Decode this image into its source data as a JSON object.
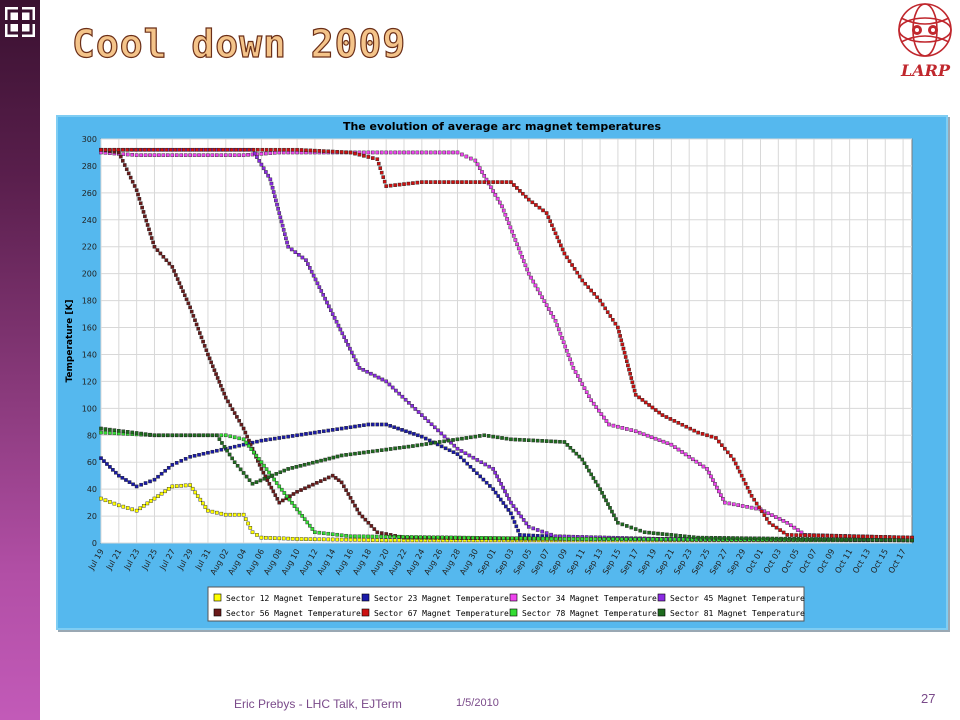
{
  "slide": {
    "title": "Cool down 2009",
    "logo_text": "LARP",
    "footer_author": "Eric Prebys - LHC Talk, EJTerm",
    "footer_date": "1/5/2010",
    "page_number": "27"
  },
  "colors": {
    "sidebar": "#5a1f4d",
    "chart_frame": "#55b8ee",
    "title_fill": "#f4c48a",
    "title_stroke": "#6b2f18",
    "larp_red": "#c0272d"
  },
  "chart_data": {
    "type": "scatter",
    "title": "The evolution of average arc magnet temperatures",
    "ylabel": "Temperature [K]",
    "xlabel": "",
    "ylim": [
      0,
      300
    ],
    "yticks": [
      0,
      20,
      40,
      60,
      80,
      100,
      120,
      140,
      160,
      180,
      200,
      220,
      240,
      260,
      280,
      300
    ],
    "x_axis": "dates 2009, Jul 19 to Oct 18",
    "x_tick_labels": [
      "Jul 19",
      "Jul 21",
      "Jul 23",
      "Jul 25",
      "Jul 27",
      "Jul 29",
      "Jul 31",
      "Aug 02",
      "Aug 04",
      "Aug 06",
      "Aug 08",
      "Aug 10",
      "Aug 12",
      "Aug 14",
      "Aug 16",
      "Aug 18",
      "Aug 20",
      "Aug 22",
      "Aug 24",
      "Aug 26",
      "Aug 28",
      "Aug 30",
      "Sep 01",
      "Sep 03",
      "Sep 05",
      "Sep 07",
      "Sep 09",
      "Sep 11",
      "Sep 13",
      "Sep 15",
      "Sep 17",
      "Sep 19",
      "Sep 21",
      "Sep 23",
      "Sep 25",
      "Sep 27",
      "Sep 29",
      "Oct 01",
      "Oct 03",
      "Oct 05",
      "Oct 07",
      "Oct 09",
      "Oct 11",
      "Oct 13",
      "Oct 15",
      "Oct 17"
    ],
    "grid": true,
    "legend_position": "bottom",
    "series": [
      {
        "name": "Sector 12 Magnet Temperature",
        "color": "#ffff00",
        "points": [
          [
            "2009-07-19",
            33
          ],
          [
            "2009-07-21",
            28
          ],
          [
            "2009-07-23",
            24
          ],
          [
            "2009-07-25",
            33
          ],
          [
            "2009-07-27",
            42
          ],
          [
            "2009-07-29",
            43
          ],
          [
            "2009-07-31",
            24
          ],
          [
            "2009-08-02",
            21
          ],
          [
            "2009-08-04",
            21
          ],
          [
            "2009-08-05",
            8
          ],
          [
            "2009-08-06",
            4
          ],
          [
            "2009-08-10",
            3
          ],
          [
            "2009-08-20",
            2
          ],
          [
            "2009-09-10",
            2
          ],
          [
            "2009-10-18",
            2
          ]
        ]
      },
      {
        "name": "Sector 23 Magnet Temperature",
        "color": "#1a1aa8",
        "points": [
          [
            "2009-07-19",
            63
          ],
          [
            "2009-07-21",
            50
          ],
          [
            "2009-07-23",
            42
          ],
          [
            "2009-07-25",
            47
          ],
          [
            "2009-07-27",
            58
          ],
          [
            "2009-07-29",
            64
          ],
          [
            "2009-08-02",
            70
          ],
          [
            "2009-08-06",
            76
          ],
          [
            "2009-08-10",
            80
          ],
          [
            "2009-08-14",
            84
          ],
          [
            "2009-08-18",
            88
          ],
          [
            "2009-08-20",
            88
          ],
          [
            "2009-08-24",
            79
          ],
          [
            "2009-08-28",
            66
          ],
          [
            "2009-09-01",
            40
          ],
          [
            "2009-09-03",
            22
          ],
          [
            "2009-09-04",
            6
          ],
          [
            "2009-09-10",
            4
          ],
          [
            "2009-09-20",
            3
          ],
          [
            "2009-10-18",
            2
          ]
        ]
      },
      {
        "name": "Sector 34 Magnet Temperature",
        "color": "#ee44ee",
        "points": [
          [
            "2009-07-19",
            290
          ],
          [
            "2009-07-23",
            288
          ],
          [
            "2009-08-04",
            288
          ],
          [
            "2009-08-08",
            290
          ],
          [
            "2009-08-16",
            290
          ],
          [
            "2009-08-20",
            290
          ],
          [
            "2009-08-28",
            290
          ],
          [
            "2009-08-30",
            284
          ],
          [
            "2009-09-02",
            250
          ],
          [
            "2009-09-05",
            200
          ],
          [
            "2009-09-08",
            165
          ],
          [
            "2009-09-10",
            130
          ],
          [
            "2009-09-12",
            106
          ],
          [
            "2009-09-14",
            88
          ],
          [
            "2009-09-17",
            83
          ],
          [
            "2009-09-21",
            73
          ],
          [
            "2009-09-25",
            55
          ],
          [
            "2009-09-27",
            30
          ],
          [
            "2009-10-01",
            25
          ],
          [
            "2009-10-04",
            15
          ],
          [
            "2009-10-06",
            6
          ],
          [
            "2009-10-18",
            4
          ]
        ]
      },
      {
        "name": "Sector 45 Magnet Temperature",
        "color": "#8a2be2",
        "points": [
          [
            "2009-07-19",
            292
          ],
          [
            "2009-08-05",
            292
          ],
          [
            "2009-08-07",
            270
          ],
          [
            "2009-08-09",
            220
          ],
          [
            "2009-08-11",
            210
          ],
          [
            "2009-08-14",
            170
          ],
          [
            "2009-08-17",
            130
          ],
          [
            "2009-08-20",
            120
          ],
          [
            "2009-08-24",
            95
          ],
          [
            "2009-08-28",
            70
          ],
          [
            "2009-09-01",
            55
          ],
          [
            "2009-09-03",
            30
          ],
          [
            "2009-09-05",
            12
          ],
          [
            "2009-09-08",
            5
          ],
          [
            "2009-09-20",
            3
          ],
          [
            "2009-10-18",
            2
          ]
        ]
      },
      {
        "name": "Sector 56 Magnet Temperature",
        "color": "#6b1a1a",
        "points": [
          [
            "2009-07-19",
            292
          ],
          [
            "2009-07-21",
            290
          ],
          [
            "2009-07-23",
            262
          ],
          [
            "2009-07-25",
            220
          ],
          [
            "2009-07-27",
            205
          ],
          [
            "2009-07-29",
            175
          ],
          [
            "2009-07-31",
            140
          ],
          [
            "2009-08-02",
            108
          ],
          [
            "2009-08-04",
            85
          ],
          [
            "2009-08-06",
            55
          ],
          [
            "2009-08-08",
            30
          ],
          [
            "2009-08-10",
            38
          ],
          [
            "2009-08-14",
            50
          ],
          [
            "2009-08-15",
            45
          ],
          [
            "2009-08-17",
            22
          ],
          [
            "2009-08-19",
            8
          ],
          [
            "2009-08-22",
            4
          ],
          [
            "2009-09-10",
            3
          ],
          [
            "2009-10-18",
            2
          ]
        ]
      },
      {
        "name": "Sector 67 Magnet Temperature",
        "color": "#cc1111",
        "points": [
          [
            "2009-07-19",
            292
          ],
          [
            "2009-08-10",
            292
          ],
          [
            "2009-08-16",
            290
          ],
          [
            "2009-08-19",
            285
          ],
          [
            "2009-08-20",
            265
          ],
          [
            "2009-08-24",
            268
          ],
          [
            "2009-08-28",
            268
          ],
          [
            "2009-09-03",
            268
          ],
          [
            "2009-09-05",
            255
          ],
          [
            "2009-09-07",
            245
          ],
          [
            "2009-09-09",
            215
          ],
          [
            "2009-09-11",
            195
          ],
          [
            "2009-09-13",
            180
          ],
          [
            "2009-09-15",
            160
          ],
          [
            "2009-09-17",
            110
          ],
          [
            "2009-09-20",
            95
          ],
          [
            "2009-09-24",
            82
          ],
          [
            "2009-09-26",
            78
          ],
          [
            "2009-09-28",
            62
          ],
          [
            "2009-09-30",
            35
          ],
          [
            "2009-10-02",
            15
          ],
          [
            "2009-10-04",
            6
          ],
          [
            "2009-10-18",
            4
          ]
        ]
      },
      {
        "name": "Sector 78 Magnet Temperature",
        "color": "#33dd33",
        "points": [
          [
            "2009-07-19",
            82
          ],
          [
            "2009-07-25",
            80
          ],
          [
            "2009-08-02",
            80
          ],
          [
            "2009-08-04",
            77
          ],
          [
            "2009-08-06",
            60
          ],
          [
            "2009-08-08",
            42
          ],
          [
            "2009-08-10",
            25
          ],
          [
            "2009-08-12",
            8
          ],
          [
            "2009-08-16",
            5
          ],
          [
            "2009-09-10",
            3
          ],
          [
            "2009-10-18",
            2
          ]
        ]
      },
      {
        "name": "Sector 81 Magnet Temperature",
        "color": "#1e6b1e",
        "points": [
          [
            "2009-07-19",
            85
          ],
          [
            "2009-07-25",
            80
          ],
          [
            "2009-08-01",
            80
          ],
          [
            "2009-08-03",
            60
          ],
          [
            "2009-08-05",
            44
          ],
          [
            "2009-08-09",
            55
          ],
          [
            "2009-08-15",
            65
          ],
          [
            "2009-08-23",
            72
          ],
          [
            "2009-08-31",
            80
          ],
          [
            "2009-09-03",
            77
          ],
          [
            "2009-09-09",
            75
          ],
          [
            "2009-09-11",
            62
          ],
          [
            "2009-09-13",
            40
          ],
          [
            "2009-09-15",
            15
          ],
          [
            "2009-09-18",
            8
          ],
          [
            "2009-09-24",
            4
          ],
          [
            "2009-10-18",
            2
          ]
        ]
      }
    ]
  }
}
